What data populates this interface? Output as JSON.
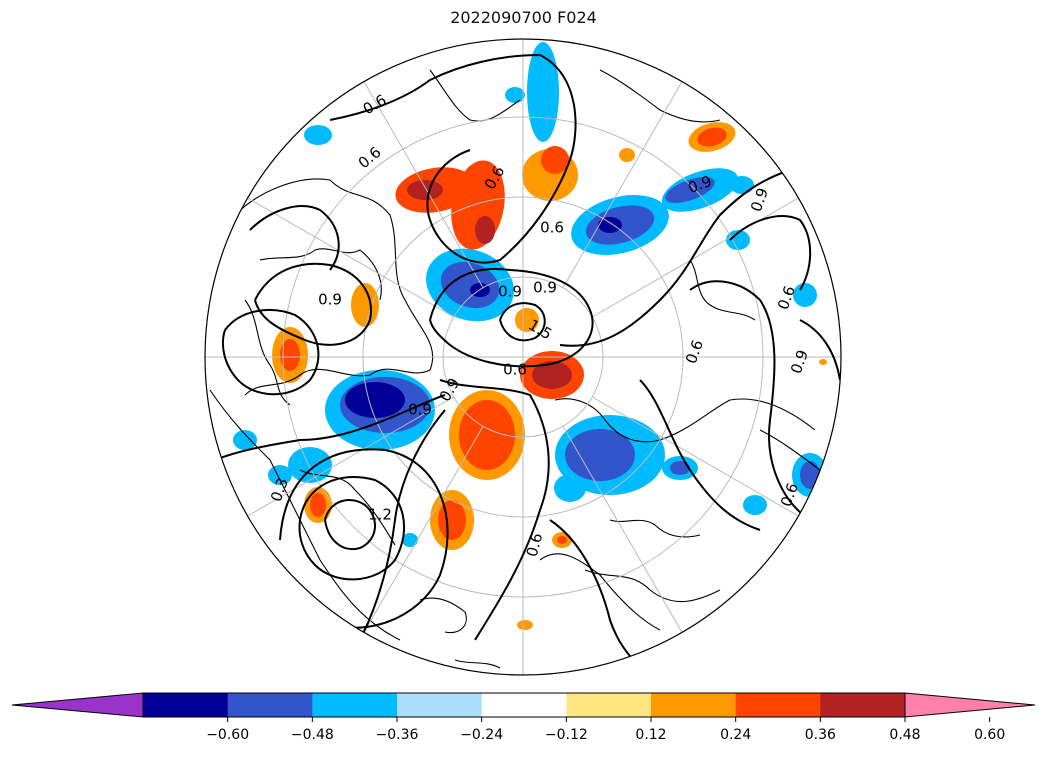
{
  "chart_data": {
    "type": "heatmap",
    "title": "2022090700 F024",
    "projection": "north polar stereographic",
    "grid": true,
    "colorbar": {
      "orientation": "horizontal",
      "placement": "bottom",
      "extend": "both",
      "levels": [
        -0.72,
        -0.6,
        -0.48,
        -0.36,
        -0.24,
        -0.12,
        0.12,
        0.24,
        0.36,
        0.48,
        0.6,
        0.72
      ],
      "tick_values": [
        -0.6,
        -0.48,
        -0.36,
        -0.24,
        -0.12,
        0.12,
        0.24,
        0.36,
        0.48,
        0.6
      ],
      "tick_labels": [
        "−0.60",
        "−0.48",
        "−0.36",
        "−0.24",
        "−0.12",
        "0.12",
        "0.24",
        "0.36",
        "0.48",
        "0.60"
      ],
      "colors": [
        "#9933cc",
        "#000099",
        "#3355cc",
        "#00bbff",
        "#aaddff",
        "#ffffff",
        "#ffe680",
        "#ff9900",
        "#ff4400",
        "#b22222",
        "#ff80aa"
      ]
    },
    "contour_labels": [
      "0.6",
      "0.6",
      "0.6",
      "0.6",
      "0.6",
      "0.6",
      "0.6",
      "0.6",
      "0.9",
      "0.9",
      "0.9",
      "0.9",
      "0.9",
      "0.9",
      "0.9",
      "0.9",
      "1.5",
      "1.2",
      "0.6",
      "0.3"
    ]
  }
}
